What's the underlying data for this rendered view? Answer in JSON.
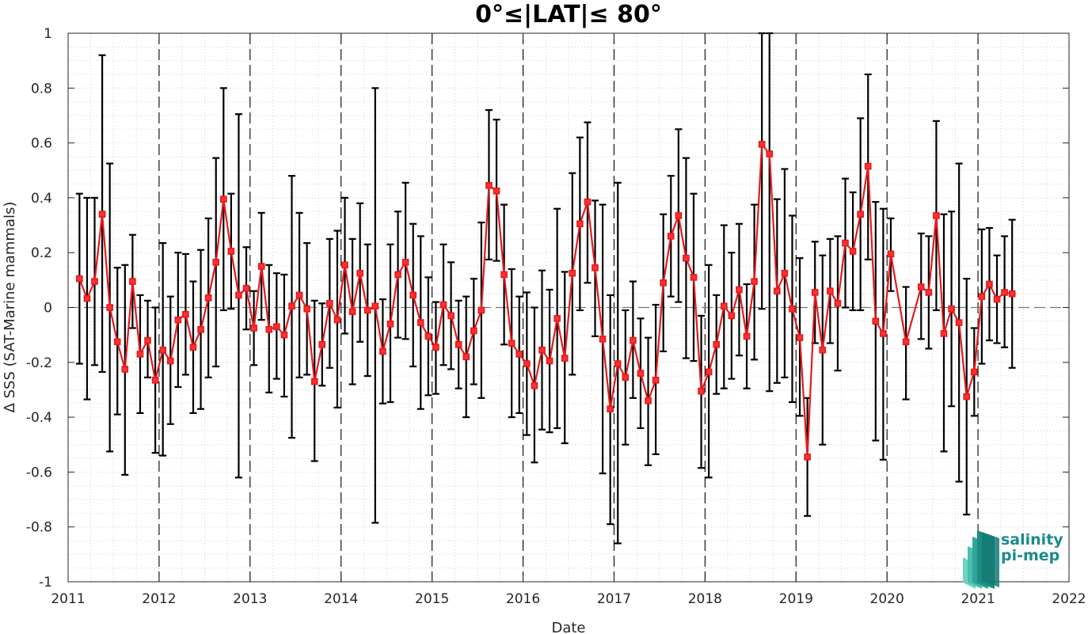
{
  "chart_data": {
    "type": "line",
    "title": "0°≤|LAT|≤ 80°",
    "xlabel": "Date",
    "ylabel": "Δ SSS (SAT-Marine mammals)",
    "xlim": [
      "2011-01-01",
      "2022-01-01"
    ],
    "ylim": [
      -1,
      1
    ],
    "xticks": [
      "2011",
      "2012",
      "2013",
      "2014",
      "2015",
      "2016",
      "2017",
      "2018",
      "2019",
      "2020",
      "2021",
      "2022"
    ],
    "yticks": [
      "-1",
      "-0.8",
      "-0.6",
      "-0.4",
      "-0.2",
      "0",
      "0.2",
      "0.4",
      "0.6",
      "0.8",
      "1"
    ],
    "grid": "minor dotted",
    "year_boundaries": "dashed vertical lines",
    "zero_line": "dashed",
    "series": [
      {
        "color": "#e41a1c",
        "marker": "square",
        "points": [
          {
            "x": "2011-02",
            "y": 0.105,
            "lo": -0.205,
            "hi": 0.415
          },
          {
            "x": "2011-03",
            "y": 0.033,
            "lo": -0.335,
            "hi": 0.4
          },
          {
            "x": "2011-04",
            "y": 0.095,
            "lo": -0.21,
            "hi": 0.4
          },
          {
            "x": "2011-05",
            "y": 0.34,
            "lo": -0.235,
            "hi": 0.92
          },
          {
            "x": "2011-06",
            "y": 0.0,
            "lo": -0.525,
            "hi": 0.525
          },
          {
            "x": "2011-07",
            "y": -0.125,
            "lo": -0.39,
            "hi": 0.145
          },
          {
            "x": "2011-08",
            "y": -0.225,
            "lo": -0.61,
            "hi": 0.155
          },
          {
            "x": "2011-09",
            "y": 0.095,
            "lo": -0.075,
            "hi": 0.265
          },
          {
            "x": "2011-10",
            "y": -0.17,
            "lo": -0.385,
            "hi": 0.045
          },
          {
            "x": "2011-11",
            "y": -0.12,
            "lo": -0.255,
            "hi": 0.025
          },
          {
            "x": "2011-12",
            "y": -0.265,
            "lo": -0.53,
            "hi": 0.0
          },
          {
            "x": "2012-01",
            "y": -0.155,
            "lo": -0.54,
            "hi": 0.235
          },
          {
            "x": "2012-02",
            "y": -0.195,
            "lo": -0.425,
            "hi": 0.04
          },
          {
            "x": "2012-03",
            "y": -0.045,
            "lo": -0.29,
            "hi": 0.2
          },
          {
            "x": "2012-04",
            "y": -0.025,
            "lo": -0.245,
            "hi": 0.195
          },
          {
            "x": "2012-05",
            "y": -0.145,
            "lo": -0.385,
            "hi": 0.095
          },
          {
            "x": "2012-06",
            "y": -0.08,
            "lo": -0.37,
            "hi": 0.21
          },
          {
            "x": "2012-07",
            "y": 0.035,
            "lo": -0.255,
            "hi": 0.325
          },
          {
            "x": "2012-08",
            "y": 0.165,
            "lo": -0.215,
            "hi": 0.545
          },
          {
            "x": "2012-09",
            "y": 0.395,
            "lo": -0.01,
            "hi": 0.8
          },
          {
            "x": "2012-10",
            "y": 0.205,
            "lo": -0.005,
            "hi": 0.415
          },
          {
            "x": "2012-11",
            "y": 0.045,
            "lo": -0.62,
            "hi": 0.705
          },
          {
            "x": "2012-12",
            "y": 0.07,
            "lo": -0.08,
            "hi": 0.22
          },
          {
            "x": "2013-01",
            "y": -0.075,
            "lo": -0.21,
            "hi": 0.06
          },
          {
            "x": "2013-02",
            "y": 0.15,
            "lo": -0.045,
            "hi": 0.345
          },
          {
            "x": "2013-03",
            "y": -0.08,
            "lo": -0.31,
            "hi": 0.155
          },
          {
            "x": "2013-04",
            "y": -0.07,
            "lo": -0.26,
            "hi": 0.125
          },
          {
            "x": "2013-05",
            "y": -0.1,
            "lo": -0.325,
            "hi": 0.12
          },
          {
            "x": "2013-06",
            "y": 0.005,
            "lo": -0.475,
            "hi": 0.48
          },
          {
            "x": "2013-07",
            "y": 0.045,
            "lo": -0.255,
            "hi": 0.345
          },
          {
            "x": "2013-08",
            "y": -0.005,
            "lo": -0.245,
            "hi": 0.235
          },
          {
            "x": "2013-09",
            "y": -0.27,
            "lo": -0.56,
            "hi": 0.025
          },
          {
            "x": "2013-10",
            "y": -0.135,
            "lo": -0.285,
            "hi": 0.015
          },
          {
            "x": "2013-11",
            "y": 0.015,
            "lo": -0.22,
            "hi": 0.25
          },
          {
            "x": "2013-12",
            "y": -0.045,
            "lo": -0.365,
            "hi": 0.28
          },
          {
            "x": "2014-01",
            "y": 0.155,
            "lo": -0.095,
            "hi": 0.4
          },
          {
            "x": "2014-02",
            "y": -0.015,
            "lo": -0.28,
            "hi": 0.25
          },
          {
            "x": "2014-03",
            "y": 0.125,
            "lo": -0.125,
            "hi": 0.38
          },
          {
            "x": "2014-04",
            "y": -0.01,
            "lo": -0.25,
            "hi": 0.23
          },
          {
            "x": "2014-05",
            "y": 0.005,
            "lo": -0.785,
            "hi": 0.8
          },
          {
            "x": "2014-06",
            "y": -0.16,
            "lo": -0.35,
            "hi": 0.03
          },
          {
            "x": "2014-07",
            "y": -0.06,
            "lo": -0.345,
            "hi": 0.23
          },
          {
            "x": "2014-08",
            "y": 0.12,
            "lo": -0.11,
            "hi": 0.35
          },
          {
            "x": "2014-09",
            "y": 0.165,
            "lo": -0.115,
            "hi": 0.455
          },
          {
            "x": "2014-10",
            "y": 0.045,
            "lo": -0.215,
            "hi": 0.305
          },
          {
            "x": "2014-11",
            "y": -0.055,
            "lo": -0.37,
            "hi": 0.26
          },
          {
            "x": "2014-12",
            "y": -0.105,
            "lo": -0.32,
            "hi": 0.11
          },
          {
            "x": "2015-01",
            "y": -0.145,
            "lo": -0.315,
            "hi": 0.02
          },
          {
            "x": "2015-02",
            "y": 0.01,
            "lo": -0.21,
            "hi": 0.23
          },
          {
            "x": "2015-03",
            "y": -0.03,
            "lo": -0.225,
            "hi": 0.165
          },
          {
            "x": "2015-04",
            "y": -0.135,
            "lo": -0.295,
            "hi": 0.025
          },
          {
            "x": "2015-05",
            "y": -0.18,
            "lo": -0.4,
            "hi": 0.04
          },
          {
            "x": "2015-06",
            "y": -0.085,
            "lo": -0.28,
            "hi": 0.105
          },
          {
            "x": "2015-07",
            "y": -0.01,
            "lo": -0.33,
            "hi": 0.31
          },
          {
            "x": "2015-08",
            "y": 0.445,
            "lo": 0.175,
            "hi": 0.72
          },
          {
            "x": "2015-09",
            "y": 0.425,
            "lo": 0.17,
            "hi": 0.685
          },
          {
            "x": "2015-10",
            "y": 0.12,
            "lo": -0.135,
            "hi": 0.375
          },
          {
            "x": "2015-11",
            "y": -0.13,
            "lo": -0.4,
            "hi": 0.14
          },
          {
            "x": "2015-12",
            "y": -0.17,
            "lo": -0.385,
            "hi": 0.04
          },
          {
            "x": "2016-01",
            "y": -0.205,
            "lo": -0.465,
            "hi": 0.055
          },
          {
            "x": "2016-02",
            "y": -0.285,
            "lo": -0.565,
            "hi": 0.0
          },
          {
            "x": "2016-03",
            "y": -0.155,
            "lo": -0.445,
            "hi": 0.135
          },
          {
            "x": "2016-04",
            "y": -0.195,
            "lo": -0.455,
            "hi": 0.065
          },
          {
            "x": "2016-05",
            "y": -0.04,
            "lo": -0.44,
            "hi": 0.36
          },
          {
            "x": "2016-06",
            "y": -0.185,
            "lo": -0.495,
            "hi": 0.13
          },
          {
            "x": "2016-07",
            "y": 0.125,
            "lo": -0.245,
            "hi": 0.49
          },
          {
            "x": "2016-08",
            "y": 0.305,
            "lo": -0.01,
            "hi": 0.62
          },
          {
            "x": "2016-09",
            "y": 0.385,
            "lo": 0.09,
            "hi": 0.675
          },
          {
            "x": "2016-10",
            "y": 0.145,
            "lo": -0.105,
            "hi": 0.39
          },
          {
            "x": "2016-11",
            "y": -0.115,
            "lo": -0.605,
            "hi": 0.375
          },
          {
            "x": "2016-12",
            "y": -0.37,
            "lo": -0.79,
            "hi": 0.045
          },
          {
            "x": "2017-01",
            "y": -0.205,
            "lo": -0.86,
            "hi": 0.455
          },
          {
            "x": "2017-02",
            "y": -0.255,
            "lo": -0.5,
            "hi": -0.01
          },
          {
            "x": "2017-03",
            "y": -0.12,
            "lo": -0.33,
            "hi": 0.095
          },
          {
            "x": "2017-04",
            "y": -0.24,
            "lo": -0.44,
            "hi": -0.04
          },
          {
            "x": "2017-05",
            "y": -0.34,
            "lo": -0.575,
            "hi": -0.11
          },
          {
            "x": "2017-06",
            "y": -0.265,
            "lo": -0.535,
            "hi": 0.01
          },
          {
            "x": "2017-07",
            "y": 0.09,
            "lo": -0.16,
            "hi": 0.34
          },
          {
            "x": "2017-08",
            "y": 0.26,
            "lo": 0.04,
            "hi": 0.48
          },
          {
            "x": "2017-09",
            "y": 0.335,
            "lo": 0.02,
            "hi": 0.65
          },
          {
            "x": "2017-10",
            "y": 0.18,
            "lo": -0.185,
            "hi": 0.545
          },
          {
            "x": "2017-11",
            "y": 0.11,
            "lo": -0.195,
            "hi": 0.415
          },
          {
            "x": "2017-12",
            "y": -0.305,
            "lo": -0.585,
            "hi": -0.03
          },
          {
            "x": "2018-01",
            "y": -0.235,
            "lo": -0.62,
            "hi": 0.155
          },
          {
            "x": "2018-02",
            "y": -0.135,
            "lo": -0.315,
            "hi": 0.045
          },
          {
            "x": "2018-03",
            "y": 0.005,
            "lo": -0.295,
            "hi": 0.3
          },
          {
            "x": "2018-04",
            "y": -0.03,
            "lo": -0.26,
            "hi": 0.2
          },
          {
            "x": "2018-05",
            "y": 0.065,
            "lo": -0.175,
            "hi": 0.305
          },
          {
            "x": "2018-06",
            "y": -0.105,
            "lo": -0.295,
            "hi": 0.085
          },
          {
            "x": "2018-07",
            "y": 0.095,
            "lo": -0.19,
            "hi": 0.375
          },
          {
            "x": "2018-08",
            "y": 0.595,
            "lo": -0.005,
            "hi": 1.0
          },
          {
            "x": "2018-09",
            "y": 0.56,
            "lo": -0.305,
            "hi": 1.0
          },
          {
            "x": "2018-10",
            "y": 0.06,
            "lo": -0.275,
            "hi": 0.395
          },
          {
            "x": "2018-11",
            "y": 0.125,
            "lo": -0.255,
            "hi": 0.505
          },
          {
            "x": "2018-12",
            "y": -0.005,
            "lo": -0.345,
            "hi": 0.335
          },
          {
            "x": "2019-01",
            "y": -0.11,
            "lo": -0.395,
            "hi": 0.18
          },
          {
            "x": "2019-02",
            "y": -0.545,
            "lo": -0.76,
            "hi": -0.33
          },
          {
            "x": "2019-03",
            "y": 0.055,
            "lo": -0.13,
            "hi": 0.24
          },
          {
            "x": "2019-04",
            "y": -0.155,
            "lo": -0.5,
            "hi": 0.19
          },
          {
            "x": "2019-05",
            "y": 0.06,
            "lo": -0.13,
            "hi": 0.25
          },
          {
            "x": "2019-06",
            "y": 0.015,
            "lo": -0.23,
            "hi": 0.26
          },
          {
            "x": "2019-07",
            "y": 0.235,
            "lo": 0.0,
            "hi": 0.47
          },
          {
            "x": "2019-08",
            "y": 0.205,
            "lo": -0.01,
            "hi": 0.42
          },
          {
            "x": "2019-09",
            "y": 0.34,
            "lo": -0.01,
            "hi": 0.69
          },
          {
            "x": "2019-10",
            "y": 0.515,
            "lo": 0.175,
            "hi": 0.85
          },
          {
            "x": "2019-11",
            "y": -0.05,
            "lo": -0.485,
            "hi": 0.385
          },
          {
            "x": "2019-12",
            "y": -0.095,
            "lo": -0.555,
            "hi": 0.36
          },
          {
            "x": "2020-01",
            "y": 0.195,
            "lo": 0.06,
            "hi": 0.325
          },
          {
            "x": "2020-03",
            "y": -0.125,
            "lo": -0.335,
            "hi": 0.075
          },
          {
            "x": "2020-05",
            "y": 0.075,
            "lo": -0.115,
            "hi": 0.27
          },
          {
            "x": "2020-06",
            "y": 0.055,
            "lo": -0.15,
            "hi": 0.26
          },
          {
            "x": "2020-07",
            "y": 0.335,
            "lo": -0.01,
            "hi": 0.68
          },
          {
            "x": "2020-08",
            "y": -0.095,
            "lo": -0.525,
            "hi": 0.34
          },
          {
            "x": "2020-09",
            "y": -0.005,
            "lo": -0.36,
            "hi": 0.35
          },
          {
            "x": "2020-10",
            "y": -0.055,
            "lo": -0.635,
            "hi": 0.525
          },
          {
            "x": "2020-11",
            "y": -0.325,
            "lo": -0.755,
            "hi": 0.105
          },
          {
            "x": "2020-12",
            "y": -0.235,
            "lo": -0.395,
            "hi": -0.075
          },
          {
            "x": "2021-01",
            "y": 0.04,
            "lo": -0.205,
            "hi": 0.285
          },
          {
            "x": "2021-02",
            "y": 0.085,
            "lo": -0.12,
            "hi": 0.29
          },
          {
            "x": "2021-03",
            "y": 0.03,
            "lo": -0.13,
            "hi": 0.19
          },
          {
            "x": "2021-04",
            "y": 0.055,
            "lo": -0.145,
            "hi": 0.26
          },
          {
            "x": "2021-05",
            "y": 0.05,
            "lo": -0.22,
            "hi": 0.32
          }
        ]
      }
    ]
  },
  "logo": {
    "line1": "salinity",
    "line2": "pi-mep",
    "color": "#1a8c8c"
  }
}
